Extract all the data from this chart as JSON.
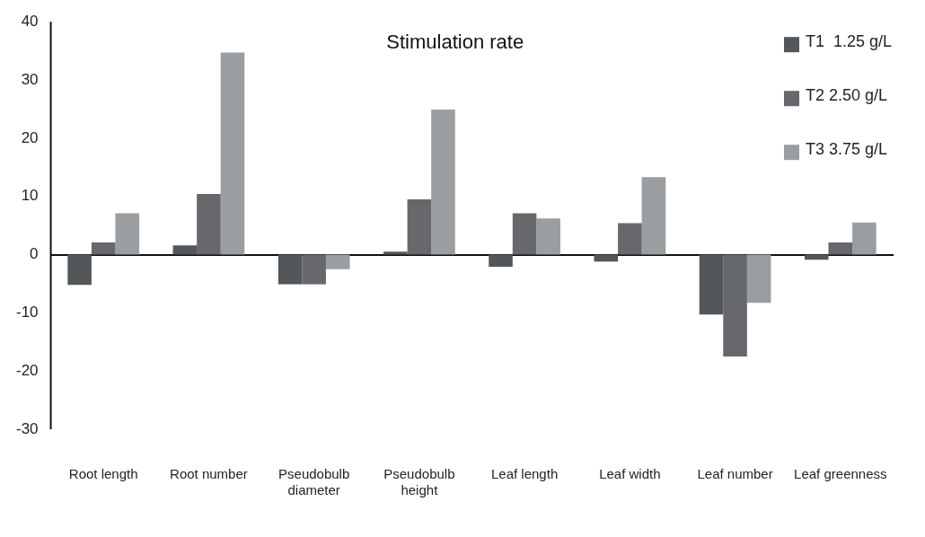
{
  "chart_data": {
    "type": "bar",
    "title": "Stimulation rate",
    "categories": [
      "Root length",
      "Root number",
      "Pseudobulb diameter",
      "Pseudobulb height",
      "Leaf length",
      "Leaf width",
      "Leaf number",
      "Leaf greenness"
    ],
    "series": [
      {
        "name": "T1  1.25 g/L",
        "color": "#53575a",
        "values": [
          -5.2,
          1.6,
          -5.1,
          0.5,
          -2.1,
          -1.2,
          -10.3,
          -0.9
        ]
      },
      {
        "name": "T2 2.50 g/L",
        "color": "#66686c",
        "values": [
          2.1,
          10.4,
          -5.1,
          9.5,
          7.1,
          5.4,
          -17.5,
          2.1
        ]
      },
      {
        "name": "T3 3.75 g/L",
        "color": "#9b9ea1",
        "values": [
          7.1,
          34.7,
          -2.5,
          24.9,
          6.2,
          13.3,
          -8.3,
          5.5
        ]
      }
    ],
    "ylim": [
      -30,
      40
    ],
    "yticks": [
      -30,
      -20,
      -10,
      0,
      10,
      20,
      30,
      40
    ],
    "legend": "top right"
  }
}
